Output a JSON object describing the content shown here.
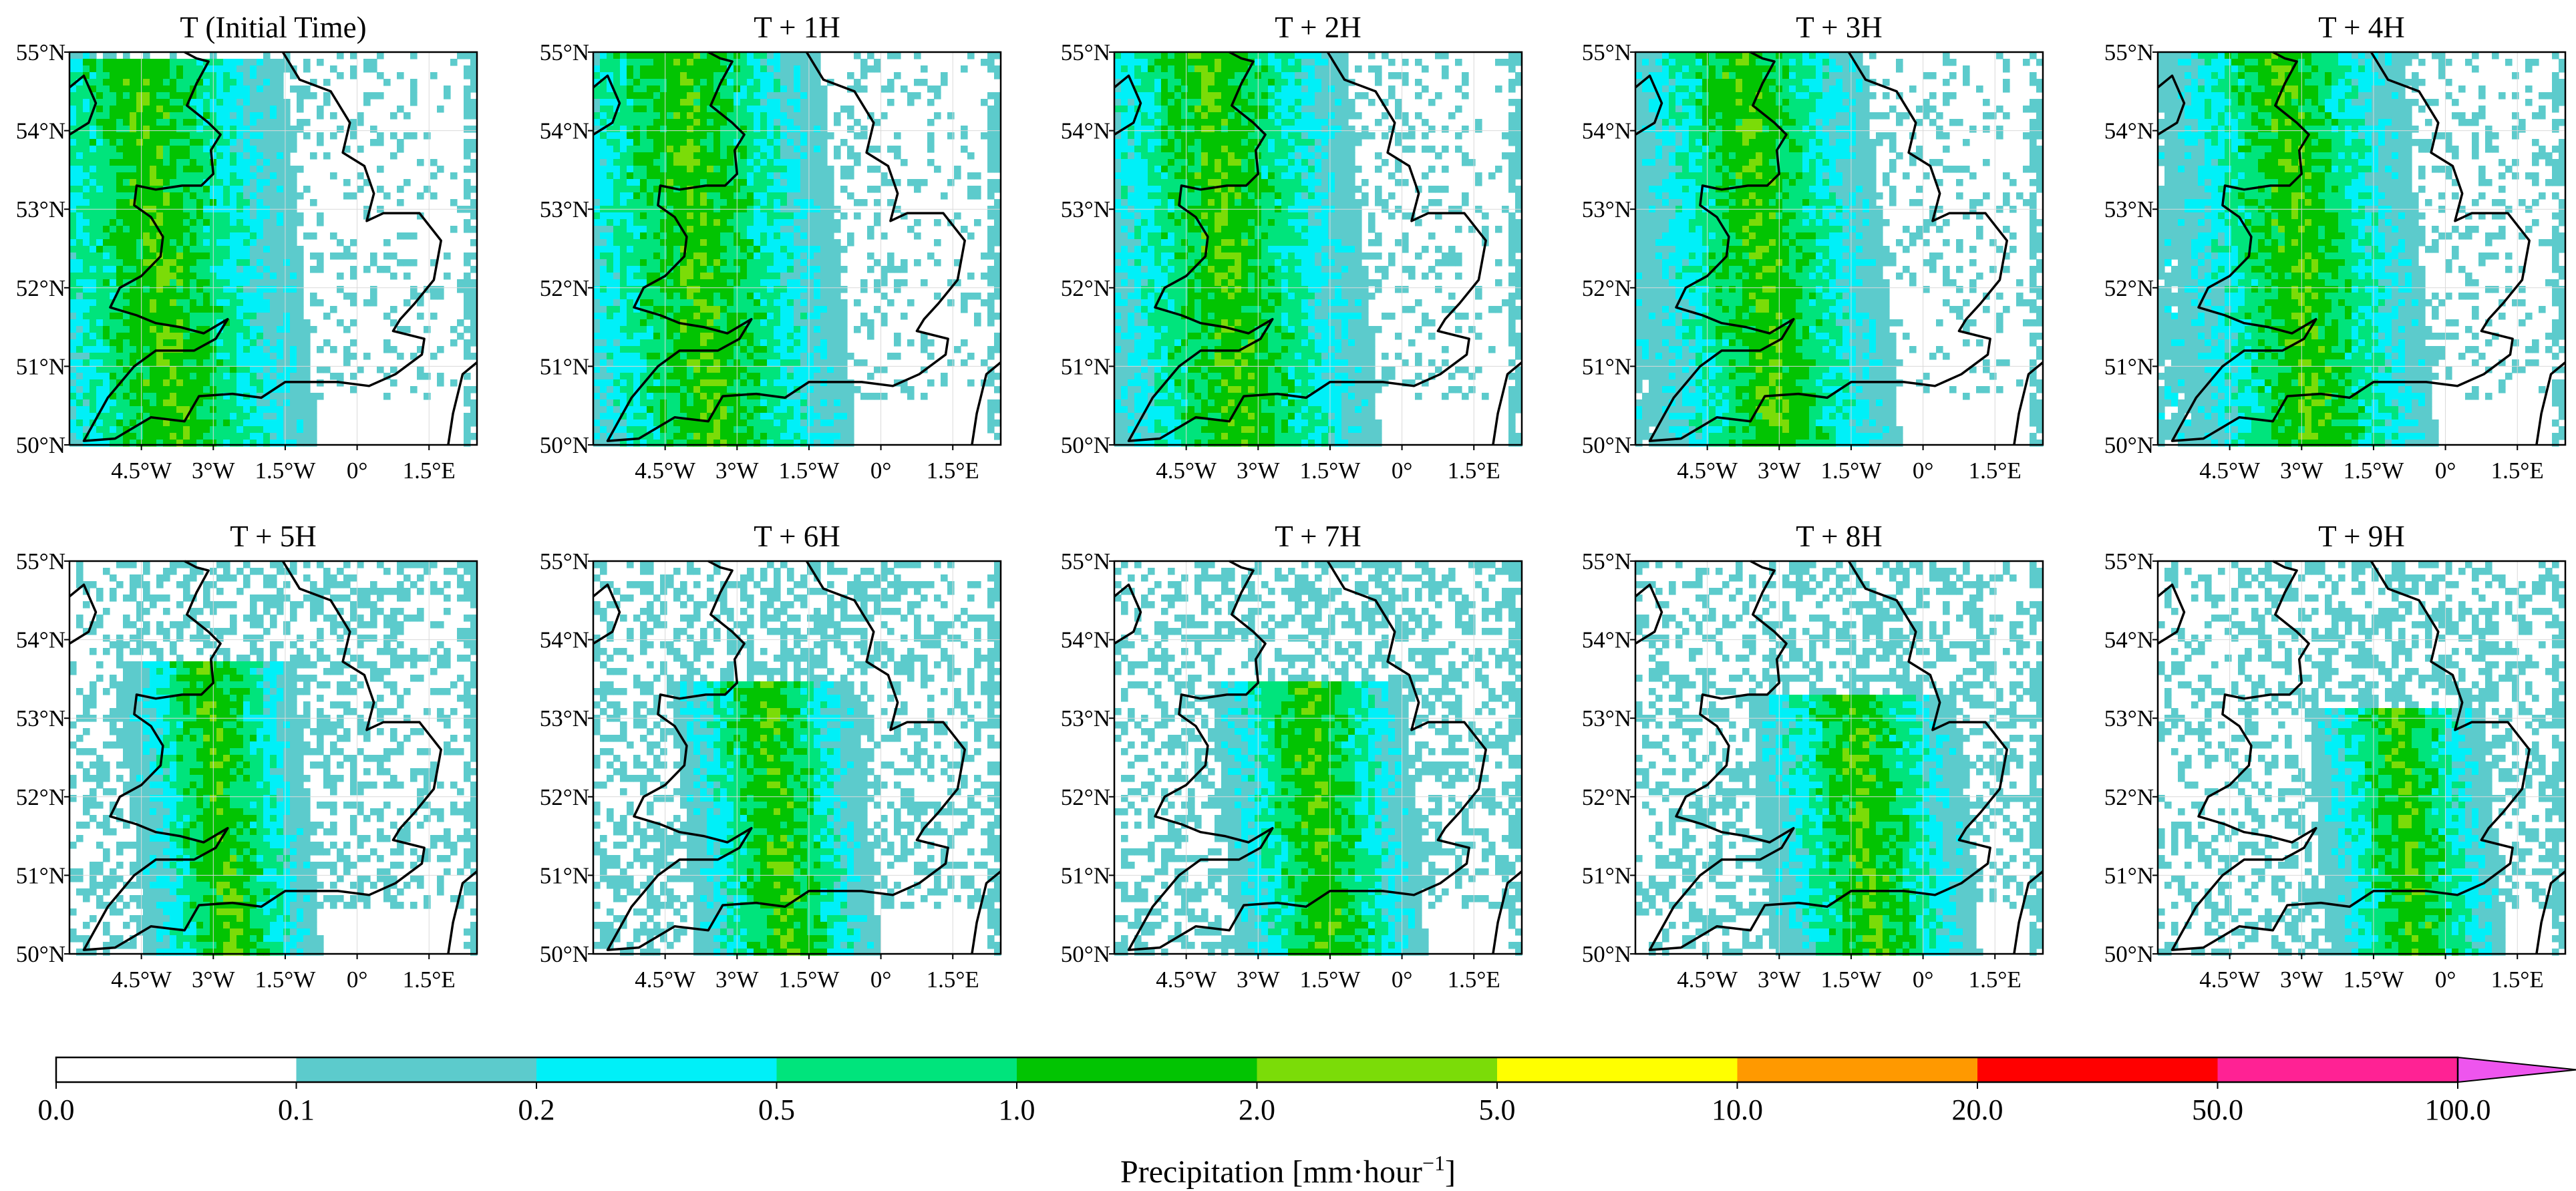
{
  "chart_data": {
    "type": "heatmap",
    "panels": [
      {
        "title": "T (Initial Time)",
        "rain_band": {
          "lat": [
            50.0,
            54.6
          ],
          "lon": [
            -5.5,
            -2.8
          ]
        }
      },
      {
        "title": "T + 1H",
        "rain_band": {
          "lat": [
            50.3,
            54.8
          ],
          "lon": [
            -5.2,
            -2.5
          ]
        }
      },
      {
        "title": "T + 2H",
        "rain_band": {
          "lat": [
            50.2,
            54.8
          ],
          "lon": [
            -5.0,
            -2.4
          ]
        }
      },
      {
        "title": "T + 3H",
        "rain_band": {
          "lat": [
            50.1,
            54.9
          ],
          "lon": [
            -4.5,
            -2.3
          ]
        }
      },
      {
        "title": "T + 4H",
        "rain_band": {
          "lat": [
            50.1,
            54.9
          ],
          "lon": [
            -4.2,
            -2.0
          ]
        }
      },
      {
        "title": "T + 5H",
        "rain_band": {
          "lat": [
            50.0,
            53.4
          ],
          "lon": [
            -3.6,
            -2.3
          ]
        }
      },
      {
        "title": "T + 6H",
        "rain_band": {
          "lat": [
            50.0,
            53.2
          ],
          "lon": [
            -3.0,
            -1.6
          ]
        }
      },
      {
        "title": "T + 7H",
        "rain_band": {
          "lat": [
            50.0,
            53.2
          ],
          "lon": [
            -2.6,
            -1.1
          ]
        }
      },
      {
        "title": "T + 8H",
        "rain_band": {
          "lat": [
            50.2,
            53.0
          ],
          "lon": [
            -2.2,
            -0.5
          ]
        }
      },
      {
        "title": "T + 9H",
        "rain_band": {
          "lat": [
            50.3,
            52.8
          ],
          "lon": [
            -1.6,
            -0.3
          ]
        }
      }
    ],
    "yticks": [
      "50°N",
      "51°N",
      "52°N",
      "53°N",
      "54°N",
      "55°N"
    ],
    "ytick_values": [
      50,
      51,
      52,
      53,
      54,
      55
    ],
    "xticks": [
      "4.5°W",
      "3°W",
      "1.5°W",
      "0°",
      "1.5°E"
    ],
    "xtick_values": [
      -4.5,
      -3,
      -1.5,
      0,
      1.5
    ],
    "lon_range": [
      -6,
      2.5
    ],
    "lat_range": [
      50,
      55
    ],
    "colorbar": {
      "label": "Precipitation [mm·hour",
      "label_exponent": "−1",
      "label_close": "]",
      "boundaries": [
        "0.0",
        "0.1",
        "0.2",
        "0.5",
        "1.0",
        "2.0",
        "5.0",
        "10.0",
        "20.0",
        "50.0",
        "100.0"
      ],
      "colors": [
        "#ffffff",
        "#5ccbcc",
        "#00f0f8",
        "#00e47c",
        "#02c402",
        "#7bdc08",
        "#ffff00",
        "#ff9900",
        "#ff0000",
        "#ff2294",
        "#ee55ee"
      ],
      "extend": "max"
    }
  }
}
